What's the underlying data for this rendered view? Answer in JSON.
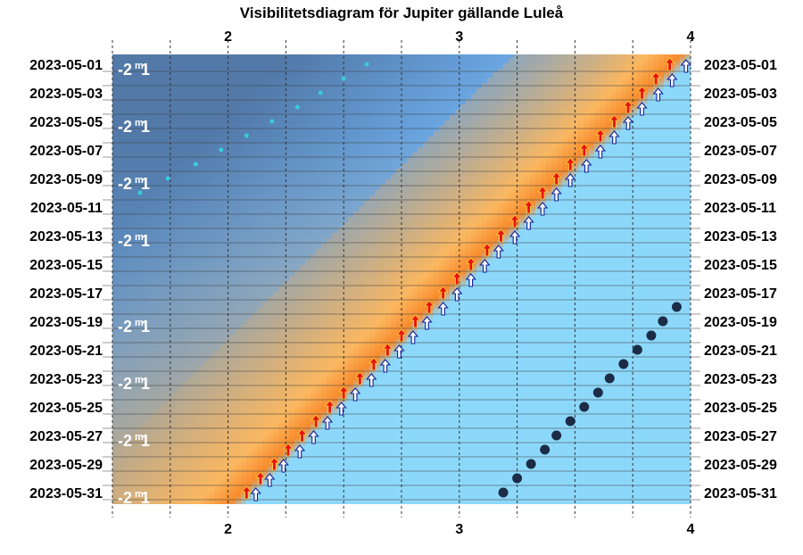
{
  "chart_data": {
    "type": "scatter",
    "title": "Visibilitetsdiagram för Jupiter gällande Luleå",
    "x_ticks": [
      2,
      3,
      4
    ],
    "xlim": [
      1.5,
      4.0
    ],
    "dates": [
      "2023-05-01",
      "2023-05-02",
      "2023-05-03",
      "2023-05-04",
      "2023-05-05",
      "2023-05-06",
      "2023-05-07",
      "2023-05-08",
      "2023-05-09",
      "2023-05-10",
      "2023-05-11",
      "2023-05-12",
      "2023-05-13",
      "2023-05-14",
      "2023-05-15",
      "2023-05-16",
      "2023-05-17",
      "2023-05-18",
      "2023-05-19",
      "2023-05-20",
      "2023-05-21",
      "2023-05-22",
      "2023-05-23",
      "2023-05-24",
      "2023-05-25",
      "2023-05-26",
      "2023-05-27",
      "2023-05-28",
      "2023-05-29",
      "2023-05-30",
      "2023-05-31"
    ],
    "date_labels": [
      "2023-05-01",
      "2023-05-03",
      "2023-05-05",
      "2023-05-07",
      "2023-05-09",
      "2023-05-11",
      "2023-05-13",
      "2023-05-15",
      "2023-05-17",
      "2023-05-19",
      "2023-05-21",
      "2023-05-23",
      "2023-05-25",
      "2023-05-27",
      "2023-05-29",
      "2023-05-31"
    ],
    "magnitude_label": "-2m1",
    "magnitude_dates": [
      "2023-05-01",
      "2023-05-05",
      "2023-05-09",
      "2023-05-13",
      "2023-05-19",
      "2023-05-23",
      "2023-05-27",
      "2023-05-31"
    ],
    "series": [
      {
        "marker": "red-arrow",
        "x": [
          3.91,
          3.85,
          3.79,
          3.73,
          3.67,
          3.61,
          3.54,
          3.48,
          3.42,
          3.36,
          3.3,
          3.24,
          3.18,
          3.12,
          3.05,
          2.99,
          2.93,
          2.87,
          2.81,
          2.75,
          2.69,
          2.63,
          2.57,
          2.5,
          2.44,
          2.38,
          2.32,
          2.26,
          2.2,
          2.14,
          2.08
        ]
      },
      {
        "marker": "blue-arrow",
        "x": [
          3.98,
          3.92,
          3.86,
          3.79,
          3.73,
          3.67,
          3.61,
          3.55,
          3.48,
          3.42,
          3.36,
          3.3,
          3.24,
          3.17,
          3.11,
          3.05,
          2.99,
          2.93,
          2.86,
          2.8,
          2.74,
          2.68,
          2.62,
          2.55,
          2.49,
          2.43,
          2.37,
          2.31,
          2.24,
          2.18,
          2.12
        ]
      },
      {
        "marker": "cyan-dot",
        "dates": [
          "2023-05-01",
          "2023-05-02",
          "2023-05-03",
          "2023-05-04",
          "2023-05-05",
          "2023-05-06",
          "2023-05-07",
          "2023-05-08",
          "2023-05-09",
          "2023-05-10"
        ],
        "x": [
          2.6,
          2.5,
          2.4,
          2.3,
          2.19,
          2.08,
          1.97,
          1.86,
          1.74,
          1.62
        ]
      },
      {
        "marker": "dark-dot",
        "dates": [
          "2023-05-18",
          "2023-05-19",
          "2023-05-20",
          "2023-05-21",
          "2023-05-22",
          "2023-05-23",
          "2023-05-24",
          "2023-05-25",
          "2023-05-26",
          "2023-05-27",
          "2023-05-28",
          "2023-05-29",
          "2023-05-30",
          "2023-05-31"
        ],
        "x": [
          3.94,
          3.88,
          3.83,
          3.77,
          3.71,
          3.65,
          3.6,
          3.54,
          3.48,
          3.42,
          3.37,
          3.31,
          3.25,
          3.19
        ]
      }
    ]
  },
  "colors": {
    "night": "#4f74a1",
    "twilight": "#6aa6e2",
    "dusk": "#b6a890",
    "sunset": "#f88a2a",
    "sunset_light": "#fbb760",
    "day": "#8cd8fb",
    "red_arrow": "#e81010",
    "blue_arrow": "#10209a",
    "cyan_dot": "#38ccd8",
    "dark_dot": "#1c2c46"
  }
}
